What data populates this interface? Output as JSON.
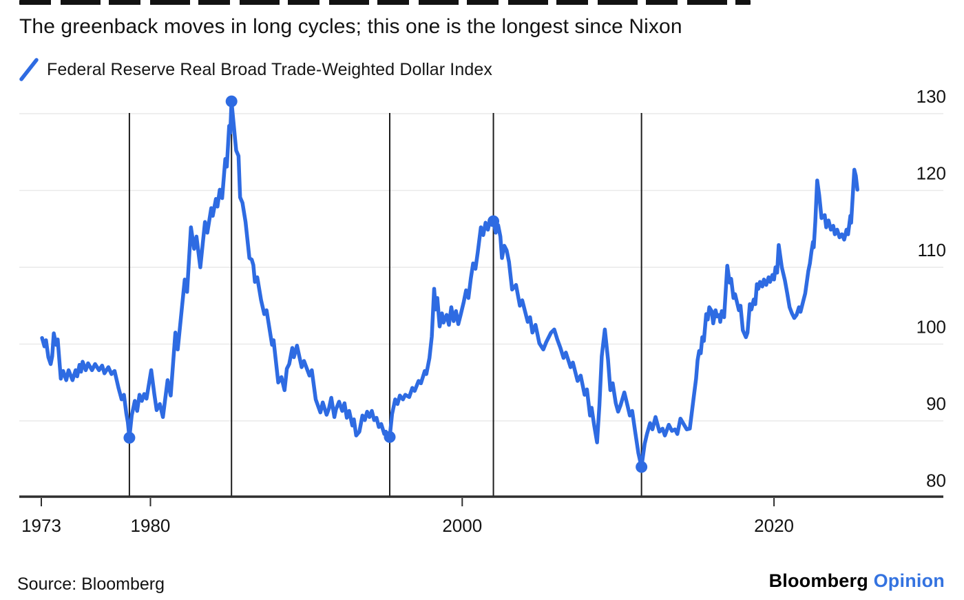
{
  "title": "The greenback moves in long cycles; this one is the longest since Nixon",
  "legend": {
    "label": "Federal Reserve Real Broad Trade-Weighted Dollar Index"
  },
  "source_note": "Source: Bloomberg",
  "branding": {
    "name": "Bloomberg",
    "unit": "Opinion"
  },
  "colors": {
    "line_blue": "#2e6be2",
    "marker_blue": "#2e6be2",
    "opinion_blue": "#3473e0",
    "grid": "#e9e9e9",
    "axis": "#2e2e2e",
    "event_line": "#1c1c1c",
    "text": "#131313"
  },
  "chart_data": {
    "type": "line",
    "title": "The greenback moves in long cycles; this one is the longest since Nixon",
    "series_name": "Federal Reserve Real Broad Trade-Weighted Dollar Index",
    "xlabel": "",
    "ylabel": "",
    "xlim": [
      1971.6,
      2026.6
    ],
    "ylim": [
      80,
      132.5
    ],
    "grid": true,
    "legend_position": "top-left",
    "y_ticks": [
      130,
      120,
      110,
      100,
      90,
      80
    ],
    "x_ticks": [
      {
        "label": "1973",
        "year": 1973
      },
      {
        "label": "1980",
        "year": 1980
      },
      {
        "label": "2000",
        "year": 2000
      },
      {
        "label": "2020",
        "year": 2020
      }
    ],
    "event_markers": [
      {
        "year": 1978.65,
        "value": 87.8,
        "type": "trough"
      },
      {
        "year": 1985.2,
        "value": 131.6,
        "type": "peak"
      },
      {
        "year": 1995.35,
        "value": 87.9,
        "type": "trough"
      },
      {
        "year": 2002.0,
        "value": 116.0,
        "type": "peak"
      },
      {
        "year": 2011.5,
        "value": 84.0,
        "type": "trough"
      }
    ],
    "points": [
      [
        1973.05,
        100.8
      ],
      [
        1973.2,
        99.7
      ],
      [
        1973.3,
        100.5
      ],
      [
        1973.45,
        98.3
      ],
      [
        1973.6,
        97.4
      ],
      [
        1973.7,
        98.4
      ],
      [
        1973.8,
        101.4
      ],
      [
        1973.95,
        99.9
      ],
      [
        1974.05,
        100.6
      ],
      [
        1974.25,
        95.5
      ],
      [
        1974.4,
        96.5
      ],
      [
        1974.6,
        95.3
      ],
      [
        1974.75,
        96.6
      ],
      [
        1975.0,
        95.3
      ],
      [
        1975.2,
        96.6
      ],
      [
        1975.3,
        95.8
      ],
      [
        1975.45,
        97.3
      ],
      [
        1975.55,
        96.4
      ],
      [
        1975.65,
        97.7
      ],
      [
        1975.85,
        96.6
      ],
      [
        1976.0,
        97.5
      ],
      [
        1976.25,
        96.6
      ],
      [
        1976.45,
        97.4
      ],
      [
        1976.7,
        96.6
      ],
      [
        1976.9,
        97.2
      ],
      [
        1977.05,
        96.2
      ],
      [
        1977.3,
        97.0
      ],
      [
        1977.5,
        96.1
      ],
      [
        1977.7,
        96.5
      ],
      [
        1977.95,
        94.3
      ],
      [
        1978.15,
        92.8
      ],
      [
        1978.3,
        93.4
      ],
      [
        1978.45,
        91.0
      ],
      [
        1978.55,
        89.8
      ],
      [
        1978.65,
        87.8
      ],
      [
        1978.8,
        90.7
      ],
      [
        1979.0,
        92.6
      ],
      [
        1979.15,
        91.3
      ],
      [
        1979.3,
        93.4
      ],
      [
        1979.45,
        92.6
      ],
      [
        1979.6,
        93.5
      ],
      [
        1979.75,
        92.9
      ],
      [
        1980.05,
        96.6
      ],
      [
        1980.25,
        93.5
      ],
      [
        1980.4,
        91.4
      ],
      [
        1980.6,
        92.2
      ],
      [
        1980.8,
        90.5
      ],
      [
        1981.1,
        95.3
      ],
      [
        1981.3,
        93.3
      ],
      [
        1981.6,
        101.5
      ],
      [
        1981.75,
        99.3
      ],
      [
        1982.2,
        108.4
      ],
      [
        1982.35,
        106.8
      ],
      [
        1982.6,
        115.2
      ],
      [
        1982.8,
        112.4
      ],
      [
        1982.95,
        114.0
      ],
      [
        1983.2,
        110.0
      ],
      [
        1983.5,
        115.9
      ],
      [
        1983.65,
        114.5
      ],
      [
        1983.9,
        117.7
      ],
      [
        1984.0,
        116.7
      ],
      [
        1984.2,
        118.9
      ],
      [
        1984.3,
        117.9
      ],
      [
        1984.45,
        120.1
      ],
      [
        1984.6,
        119.0
      ],
      [
        1984.8,
        124.1
      ],
      [
        1984.9,
        123.1
      ],
      [
        1985.05,
        128.4
      ],
      [
        1985.12,
        127.5
      ],
      [
        1985.2,
        131.6
      ],
      [
        1985.35,
        128.4
      ],
      [
        1985.5,
        125.2
      ],
      [
        1985.65,
        124.5
      ],
      [
        1985.75,
        119.1
      ],
      [
        1985.9,
        118.4
      ],
      [
        1986.1,
        115.9
      ],
      [
        1986.35,
        111.2
      ],
      [
        1986.5,
        111.0
      ],
      [
        1986.6,
        110.3
      ],
      [
        1986.7,
        108.1
      ],
      [
        1986.85,
        108.7
      ],
      [
        1987.1,
        105.7
      ],
      [
        1987.3,
        103.9
      ],
      [
        1987.45,
        104.4
      ],
      [
        1987.8,
        99.9
      ],
      [
        1987.9,
        100.5
      ],
      [
        1988.2,
        95.0
      ],
      [
        1988.4,
        95.7
      ],
      [
        1988.6,
        94.0
      ],
      [
        1988.75,
        96.8
      ],
      [
        1988.9,
        97.4
      ],
      [
        1989.1,
        99.5
      ],
      [
        1989.2,
        98.3
      ],
      [
        1989.4,
        99.8
      ],
      [
        1989.7,
        97.0
      ],
      [
        1989.85,
        97.8
      ],
      [
        1990.2,
        95.9
      ],
      [
        1990.35,
        96.6
      ],
      [
        1990.6,
        92.8
      ],
      [
        1990.9,
        91.1
      ],
      [
        1991.05,
        92.4
      ],
      [
        1991.3,
        90.8
      ],
      [
        1991.45,
        91.6
      ],
      [
        1991.6,
        93.0
      ],
      [
        1991.8,
        90.5
      ],
      [
        1991.9,
        91.5
      ],
      [
        1992.1,
        92.5
      ],
      [
        1992.3,
        91.3
      ],
      [
        1992.45,
        92.3
      ],
      [
        1992.6,
        90.4
      ],
      [
        1992.75,
        91.3
      ],
      [
        1992.95,
        89.4
      ],
      [
        1993.05,
        90.2
      ],
      [
        1993.2,
        88.1
      ],
      [
        1993.4,
        88.6
      ],
      [
        1993.6,
        90.7
      ],
      [
        1993.75,
        90.1
      ],
      [
        1993.9,
        91.2
      ],
      [
        1994.05,
        90.5
      ],
      [
        1994.2,
        91.3
      ],
      [
        1994.35,
        90.1
      ],
      [
        1994.5,
        90.4
      ],
      [
        1994.65,
        89.2
      ],
      [
        1994.8,
        89.6
      ],
      [
        1995.0,
        88.3
      ],
      [
        1995.1,
        88.6
      ],
      [
        1995.35,
        87.9
      ],
      [
        1995.5,
        90.9
      ],
      [
        1995.7,
        92.8
      ],
      [
        1995.85,
        92.2
      ],
      [
        1996.0,
        93.3
      ],
      [
        1996.2,
        92.8
      ],
      [
        1996.35,
        93.4
      ],
      [
        1996.6,
        93.1
      ],
      [
        1996.8,
        94.3
      ],
      [
        1996.95,
        93.9
      ],
      [
        1997.2,
        95.2
      ],
      [
        1997.35,
        94.9
      ],
      [
        1997.6,
        96.5
      ],
      [
        1997.7,
        96.1
      ],
      [
        1997.9,
        98.2
      ],
      [
        1998.05,
        101.0
      ],
      [
        1998.2,
        107.2
      ],
      [
        1998.3,
        104.5
      ],
      [
        1998.4,
        106.0
      ],
      [
        1998.55,
        102.3
      ],
      [
        1998.7,
        104.0
      ],
      [
        1998.8,
        102.8
      ],
      [
        1999.0,
        103.8
      ],
      [
        1999.15,
        102.5
      ],
      [
        1999.3,
        104.8
      ],
      [
        1999.45,
        103.0
      ],
      [
        1999.6,
        104.3
      ],
      [
        1999.75,
        102.6
      ],
      [
        1999.9,
        103.8
      ],
      [
        2000.1,
        105.5
      ],
      [
        2000.25,
        107.0
      ],
      [
        2000.4,
        106.0
      ],
      [
        2000.55,
        108.5
      ],
      [
        2000.7,
        110.5
      ],
      [
        2000.85,
        109.8
      ],
      [
        2001.0,
        112.0
      ],
      [
        2001.2,
        115.2
      ],
      [
        2001.35,
        114.2
      ],
      [
        2001.5,
        115.8
      ],
      [
        2001.65,
        114.9
      ],
      [
        2001.8,
        116.3
      ],
      [
        2002.0,
        116.0
      ],
      [
        2002.15,
        114.5
      ],
      [
        2002.3,
        115.5
      ],
      [
        2002.45,
        114.0
      ],
      [
        2002.55,
        111.2
      ],
      [
        2002.7,
        112.8
      ],
      [
        2002.85,
        112.2
      ],
      [
        2003.0,
        110.7
      ],
      [
        2003.2,
        107.1
      ],
      [
        2003.45,
        107.7
      ],
      [
        2003.7,
        105.0
      ],
      [
        2003.85,
        105.7
      ],
      [
        2004.2,
        102.9
      ],
      [
        2004.35,
        103.5
      ],
      [
        2004.5,
        101.5
      ],
      [
        2004.7,
        102.5
      ],
      [
        2004.95,
        100.1
      ],
      [
        2005.2,
        99.3
      ],
      [
        2005.4,
        100.3
      ],
      [
        2005.7,
        101.5
      ],
      [
        2005.9,
        101.9
      ],
      [
        2006.1,
        100.6
      ],
      [
        2006.3,
        99.5
      ],
      [
        2006.5,
        98.2
      ],
      [
        2006.65,
        98.9
      ],
      [
        2006.95,
        97.0
      ],
      [
        2007.1,
        97.6
      ],
      [
        2007.4,
        95.2
      ],
      [
        2007.6,
        95.9
      ],
      [
        2007.85,
        93.4
      ],
      [
        2008.0,
        94.1
      ],
      [
        2008.2,
        90.7
      ],
      [
        2008.3,
        91.7
      ],
      [
        2008.45,
        89.6
      ],
      [
        2008.65,
        87.2
      ],
      [
        2008.8,
        92.0
      ],
      [
        2008.95,
        98.4
      ],
      [
        2009.15,
        101.9
      ],
      [
        2009.35,
        98.0
      ],
      [
        2009.5,
        94.0
      ],
      [
        2009.65,
        94.9
      ],
      [
        2009.85,
        92.3
      ],
      [
        2010.0,
        91.2
      ],
      [
        2010.15,
        92.0
      ],
      [
        2010.4,
        93.7
      ],
      [
        2010.6,
        92.0
      ],
      [
        2010.75,
        90.7
      ],
      [
        2010.9,
        91.3
      ],
      [
        2011.1,
        88.5
      ],
      [
        2011.3,
        85.8
      ],
      [
        2011.5,
        84.0
      ],
      [
        2011.7,
        87.0
      ],
      [
        2011.85,
        88.3
      ],
      [
        2012.05,
        89.7
      ],
      [
        2012.2,
        88.9
      ],
      [
        2012.4,
        90.5
      ],
      [
        2012.65,
        88.6
      ],
      [
        2012.85,
        89.0
      ],
      [
        2013.0,
        88.1
      ],
      [
        2013.25,
        89.5
      ],
      [
        2013.45,
        88.7
      ],
      [
        2013.65,
        88.9
      ],
      [
        2013.8,
        88.3
      ],
      [
        2014.0,
        90.3
      ],
      [
        2014.2,
        89.6
      ],
      [
        2014.4,
        88.9
      ],
      [
        2014.6,
        89.0
      ],
      [
        2014.85,
        93.1
      ],
      [
        2015.0,
        95.5
      ],
      [
        2015.1,
        97.9
      ],
      [
        2015.2,
        99.1
      ],
      [
        2015.3,
        98.8
      ],
      [
        2015.4,
        100.9
      ],
      [
        2015.5,
        100.4
      ],
      [
        2015.65,
        103.9
      ],
      [
        2015.75,
        103.2
      ],
      [
        2015.85,
        104.8
      ],
      [
        2016.0,
        104.3
      ],
      [
        2016.1,
        102.7
      ],
      [
        2016.25,
        104.4
      ],
      [
        2016.35,
        103.6
      ],
      [
        2016.5,
        103.8
      ],
      [
        2016.55,
        102.9
      ],
      [
        2016.65,
        104.3
      ],
      [
        2016.8,
        103.5
      ],
      [
        2017.0,
        110.2
      ],
      [
        2017.15,
        108.0
      ],
      [
        2017.25,
        108.5
      ],
      [
        2017.4,
        106.0
      ],
      [
        2017.5,
        106.5
      ],
      [
        2017.75,
        104.4
      ],
      [
        2017.85,
        105.0
      ],
      [
        2018.0,
        101.8
      ],
      [
        2018.2,
        100.9
      ],
      [
        2018.3,
        101.5
      ],
      [
        2018.45,
        105.2
      ],
      [
        2018.55,
        104.5
      ],
      [
        2018.7,
        105.8
      ],
      [
        2018.8,
        105.2
      ],
      [
        2018.9,
        107.8
      ],
      [
        2019.0,
        107.2
      ],
      [
        2019.1,
        108.1
      ],
      [
        2019.25,
        107.5
      ],
      [
        2019.35,
        108.4
      ],
      [
        2019.5,
        107.7
      ],
      [
        2019.65,
        108.7
      ],
      [
        2019.75,
        108.1
      ],
      [
        2019.9,
        109.0
      ],
      [
        2020.0,
        108.4
      ],
      [
        2020.1,
        110.0
      ],
      [
        2020.2,
        109.3
      ],
      [
        2020.3,
        112.9
      ],
      [
        2020.5,
        110.0
      ],
      [
        2020.7,
        108.3
      ],
      [
        2020.85,
        106.6
      ],
      [
        2021.0,
        104.8
      ],
      [
        2021.15,
        104.0
      ],
      [
        2021.3,
        103.4
      ],
      [
        2021.45,
        103.8
      ],
      [
        2021.6,
        104.8
      ],
      [
        2021.7,
        104.2
      ],
      [
        2021.9,
        105.8
      ],
      [
        2022.0,
        106.6
      ],
      [
        2022.1,
        108.0
      ],
      [
        2022.2,
        109.5
      ],
      [
        2022.3,
        110.5
      ],
      [
        2022.4,
        112.0
      ],
      [
        2022.5,
        113.3
      ],
      [
        2022.55,
        112.6
      ],
      [
        2022.65,
        116.0
      ],
      [
        2022.77,
        121.3
      ],
      [
        2022.9,
        119.4
      ],
      [
        2023.05,
        116.4
      ],
      [
        2023.25,
        116.8
      ],
      [
        2023.35,
        115.2
      ],
      [
        2023.5,
        116.1
      ],
      [
        2023.65,
        114.9
      ],
      [
        2023.8,
        115.4
      ],
      [
        2023.9,
        114.3
      ],
      [
        2024.05,
        114.9
      ],
      [
        2024.2,
        113.9
      ],
      [
        2024.35,
        114.3
      ],
      [
        2024.5,
        113.6
      ],
      [
        2024.65,
        114.9
      ],
      [
        2024.75,
        114.3
      ],
      [
        2024.9,
        116.7
      ],
      [
        2024.95,
        115.8
      ],
      [
        2025.15,
        122.7
      ],
      [
        2025.25,
        121.9
      ],
      [
        2025.35,
        120.1
      ]
    ]
  }
}
